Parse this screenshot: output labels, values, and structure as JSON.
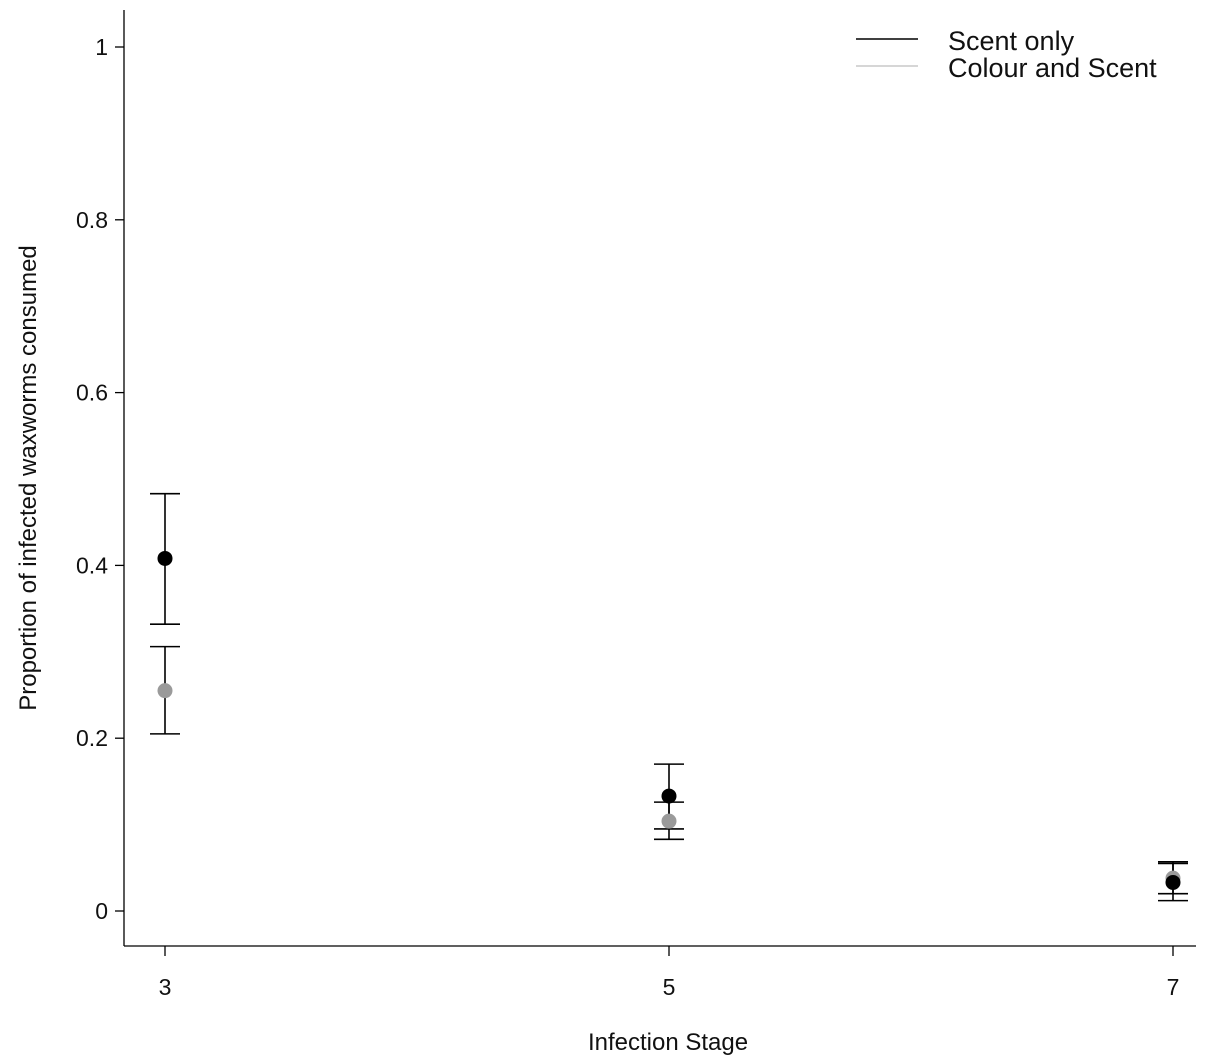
{
  "chart_data": {
    "type": "scatter",
    "title": "",
    "xlabel": "Infection Stage",
    "ylabel": "Proportion of infected waxworms consumed",
    "x_ticks": [
      "3",
      "5",
      "7"
    ],
    "y_ticks": [
      "0",
      "0.2",
      "0.4",
      "0.6",
      "0.8",
      "1"
    ],
    "xlim": [
      2.84,
      7.14
    ],
    "ylim": [
      -0.04,
      1.04
    ],
    "grid": false,
    "legend_position": "top-right",
    "series": [
      {
        "name": "Scent only",
        "color": "#000000",
        "points": [
          {
            "x": 3,
            "y": 0.408,
            "ci_low": 0.332,
            "ci_high": 0.483
          },
          {
            "x": 5,
            "y": 0.133,
            "ci_low": 0.095,
            "ci_high": 0.17
          },
          {
            "x": 7,
            "y": 0.033,
            "ci_low": 0.012,
            "ci_high": 0.055
          }
        ]
      },
      {
        "name": "Colour and Scent",
        "color": "#9a9a9a",
        "points": [
          {
            "x": 3,
            "y": 0.255,
            "ci_low": 0.205,
            "ci_high": 0.306
          },
          {
            "x": 5,
            "y": 0.104,
            "ci_low": 0.083,
            "ci_high": 0.126
          },
          {
            "x": 7,
            "y": 0.038,
            "ci_low": 0.02,
            "ci_high": 0.057
          }
        ]
      }
    ]
  }
}
